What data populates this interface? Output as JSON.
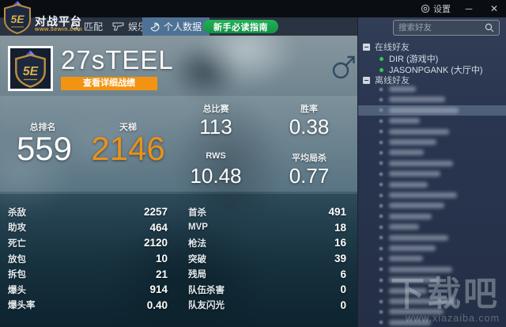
{
  "window": {
    "settings_label": "设置",
    "minimize_glyph": "─",
    "close_glyph": "✕"
  },
  "topbar": {
    "logo_badge": "5E",
    "brand_title": "对战平台",
    "brand_subtitle": "www.5ewin.com",
    "nav": [
      {
        "label": "匹配",
        "icon": "search-icon",
        "active": false
      },
      {
        "label": "娱乐",
        "icon": "pistol-icon",
        "active": false
      },
      {
        "label": "个人数据",
        "icon": "pie-chart-icon",
        "active": true
      }
    ],
    "guide_button_label": "新手必读指南"
  },
  "profile": {
    "name": "27sTEEL",
    "detail_button_label": "查看详细战绩",
    "gender_icon": "male-symbol"
  },
  "summary": {
    "rank": {
      "label": "总排名",
      "value": "559"
    },
    "ladder": {
      "label": "天梯",
      "value": "2146"
    },
    "matches": {
      "label": "总比赛",
      "value": "113"
    },
    "winrate": {
      "label": "胜率",
      "value": "0.38"
    },
    "rws": {
      "label": "RWS",
      "value": "10.48"
    },
    "avg_kills": {
      "label": "平均局杀",
      "value": "0.77"
    }
  },
  "stats_left": [
    {
      "label": "杀敌",
      "value": "2257"
    },
    {
      "label": "助攻",
      "value": "464"
    },
    {
      "label": "死亡",
      "value": "2120"
    },
    {
      "label": "放包",
      "value": "10"
    },
    {
      "label": "拆包",
      "value": "21"
    },
    {
      "label": "爆头",
      "value": "914"
    },
    {
      "label": "爆头率",
      "value": "0.40"
    }
  ],
  "stats_right": [
    {
      "label": "首杀",
      "value": "491"
    },
    {
      "label": "MVP",
      "value": "18"
    },
    {
      "label": "枪法",
      "value": "16"
    },
    {
      "label": "突破",
      "value": "39"
    },
    {
      "label": "残局",
      "value": "6"
    },
    {
      "label": "队伍杀害",
      "value": "0"
    },
    {
      "label": "队友闪光",
      "value": "0"
    }
  ],
  "sidebar": {
    "search_placeholder": "搜索好友",
    "online_header": "在线好友",
    "online_friends": [
      {
        "name": "DIR (游戏中)"
      },
      {
        "name": "JASONPGANK (大厅中)"
      }
    ],
    "offline_header": "离线好友",
    "offline": {
      "count": 23,
      "selected_index": 2,
      "names_censored": true
    }
  },
  "watermark": {
    "title": "下载吧",
    "url": "www.xiazaiba.com"
  },
  "colors": {
    "accent_orange": "#f29412",
    "ladder_orange": "#e9921b",
    "active_tab_blue": "#4e7295",
    "guide_green": "#1ca24c",
    "online_dot_green": "#2ecb52",
    "sidebar_bg": "#2a3650",
    "titlebar_bg": "#0a0d12"
  }
}
